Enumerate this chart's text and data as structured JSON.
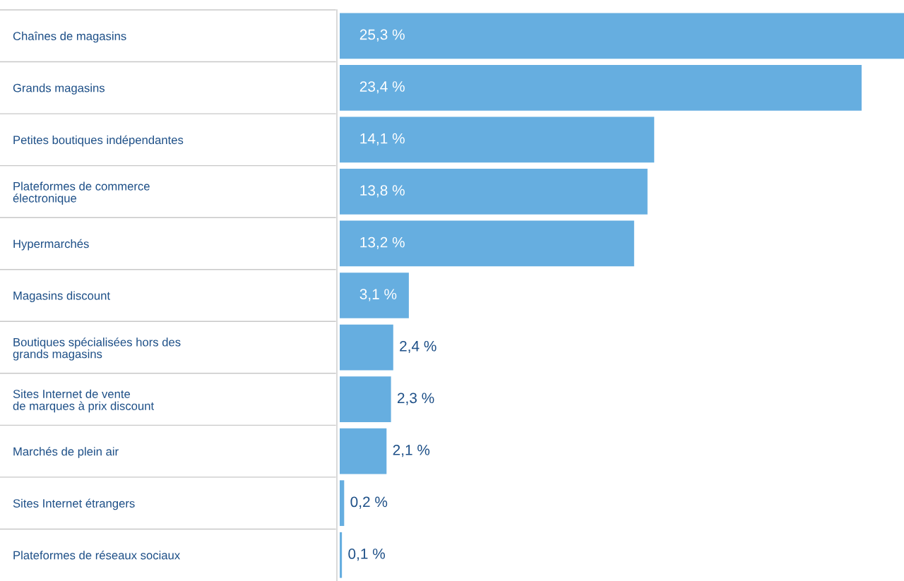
{
  "chart_data": {
    "type": "bar",
    "orientation": "horizontal",
    "relative": false,
    "categories": [
      "Chaînes de magasins",
      "Grands magasins",
      "Petites boutiques indépendantes",
      "Plateformes de commerce\nélectronique",
      "Hypermarchés",
      "Magasins discount",
      "Boutiques spécialisées hors des\ngrands magasins",
      "Sites Internet de vente\nde marques à prix discount",
      "Marchés de plein air",
      "Sites Internet étrangers",
      "Plateformes de réseaux sociaux"
    ],
    "values": [
      25.3,
      23.4,
      14.1,
      13.8,
      13.2,
      3.1,
      2.4,
      2.3,
      2.1,
      0.2,
      0.1
    ],
    "value_labels": [
      "25,3 %",
      "23,4 %",
      "14,1 %",
      "13,8 %",
      "13,2 %",
      "3,1 %",
      "2,4 %",
      "2,3 %",
      "2,1 %",
      "0,2 %",
      "0,1 %"
    ],
    "color": "#66aee0",
    "grid": false,
    "legend": false
  }
}
